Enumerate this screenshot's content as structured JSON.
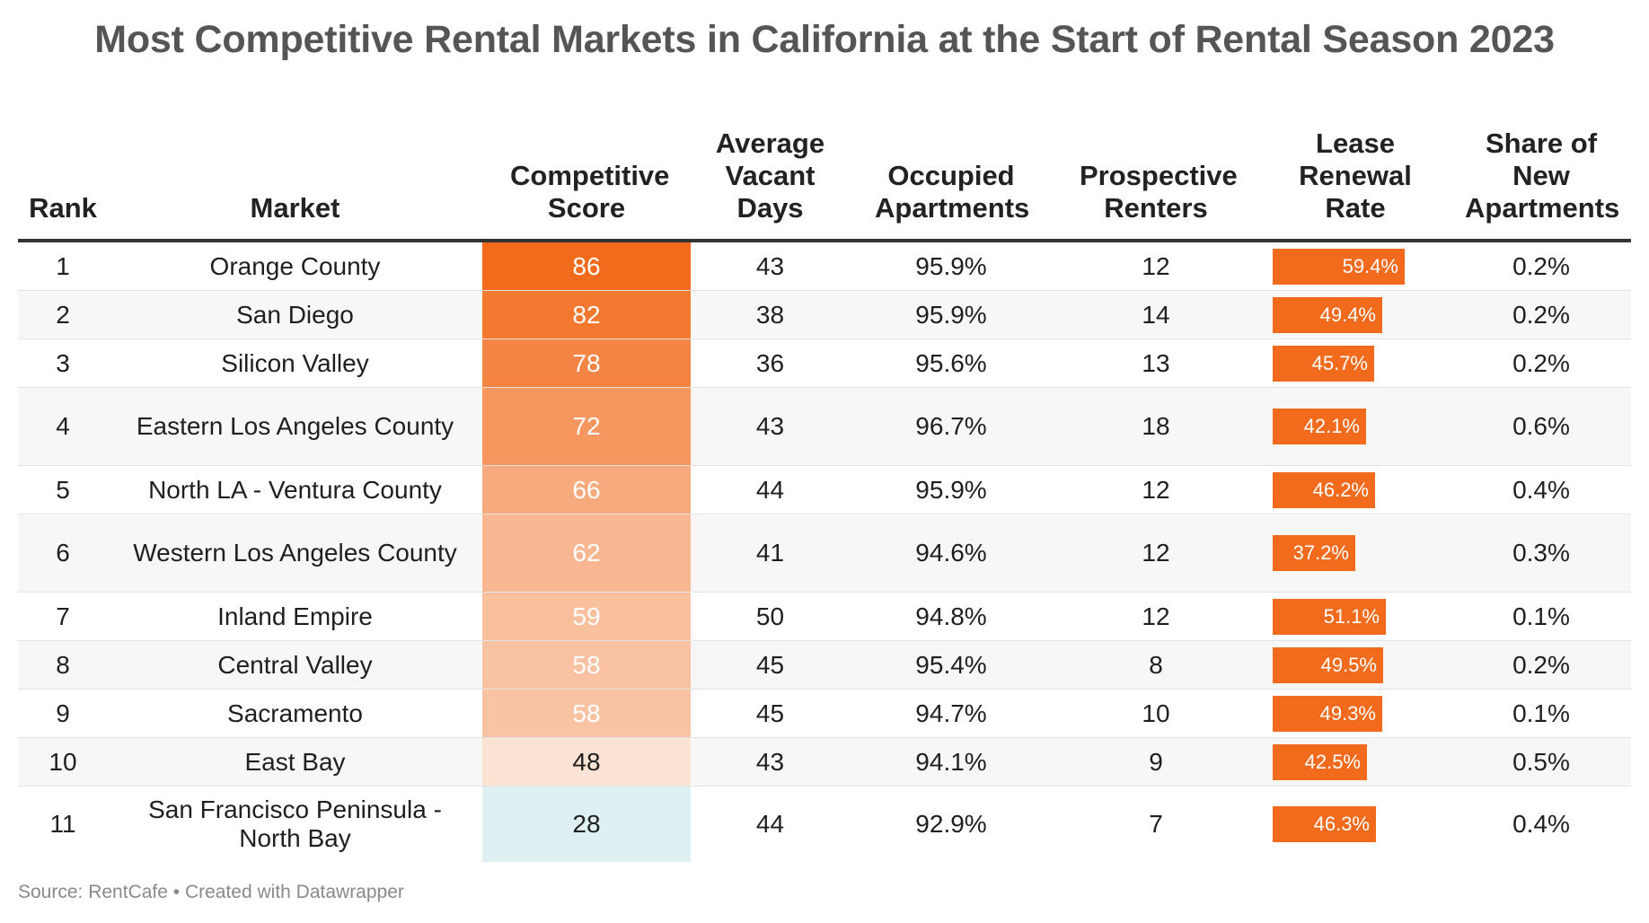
{
  "title": "Most Competitive Rental Markets in California at the Start of Rental Season 2023",
  "source": "Source: RentCafe • Created with Datawrapper",
  "columns": {
    "rank": "Rank",
    "market": "Market",
    "score": "Competitive Score",
    "days": "Average Vacant Days",
    "occupied": "Occupied Apartments",
    "prospective": "Prospective Renters",
    "lease": "Lease Renewal Rate",
    "share": "Share of New Apartments"
  },
  "colors": {
    "score_high": "#f26b1d",
    "score_low": "#fce3d3",
    "score_lowest": "#dff0f3",
    "lease_bar": "#f26b1d"
  },
  "lease_max_percent": 59.4,
  "chart_data": {
    "type": "table",
    "title": "Most Competitive Rental Markets in California at the Start of Rental Season 2023",
    "rows": [
      {
        "rank": "1",
        "market": "Orange County",
        "score": 86,
        "days": "43",
        "occupied": "95.9%",
        "prospective": "12",
        "lease": 59.4,
        "lease_label": "59.4%",
        "share": "0.2%"
      },
      {
        "rank": "2",
        "market": "San Diego",
        "score": 82,
        "days": "38",
        "occupied": "95.9%",
        "prospective": "14",
        "lease": 49.4,
        "lease_label": "49.4%",
        "share": "0.2%"
      },
      {
        "rank": "3",
        "market": "Silicon Valley",
        "score": 78,
        "days": "36",
        "occupied": "95.6%",
        "prospective": "13",
        "lease": 45.7,
        "lease_label": "45.7%",
        "share": "0.2%"
      },
      {
        "rank": "4",
        "market": "Eastern Los Angeles County",
        "score": 72,
        "days": "43",
        "occupied": "96.7%",
        "prospective": "18",
        "lease": 42.1,
        "lease_label": "42.1%",
        "share": "0.6%"
      },
      {
        "rank": "5",
        "market": "North LA - Ventura County",
        "score": 66,
        "days": "44",
        "occupied": "95.9%",
        "prospective": "12",
        "lease": 46.2,
        "lease_label": "46.2%",
        "share": "0.4%"
      },
      {
        "rank": "6",
        "market": "Western Los Angeles County",
        "score": 62,
        "days": "41",
        "occupied": "94.6%",
        "prospective": "12",
        "lease": 37.2,
        "lease_label": "37.2%",
        "share": "0.3%"
      },
      {
        "rank": "7",
        "market": "Inland Empire",
        "score": 59,
        "days": "50",
        "occupied": "94.8%",
        "prospective": "12",
        "lease": 51.1,
        "lease_label": "51.1%",
        "share": "0.1%"
      },
      {
        "rank": "8",
        "market": "Central Valley",
        "score": 58,
        "days": "45",
        "occupied": "95.4%",
        "prospective": "8",
        "lease": 49.5,
        "lease_label": "49.5%",
        "share": "0.2%"
      },
      {
        "rank": "9",
        "market": "Sacramento",
        "score": 58,
        "days": "45",
        "occupied": "94.7%",
        "prospective": "10",
        "lease": 49.3,
        "lease_label": "49.3%",
        "share": "0.1%"
      },
      {
        "rank": "10",
        "market": "East Bay",
        "score": 48,
        "days": "43",
        "occupied": "94.1%",
        "prospective": "9",
        "lease": 42.5,
        "lease_label": "42.5%",
        "share": "0.5%"
      },
      {
        "rank": "11",
        "market": "San Francisco Peninsula - North Bay",
        "score": 28,
        "days": "44",
        "occupied": "92.9%",
        "prospective": "7",
        "lease": 46.3,
        "lease_label": "46.3%",
        "share": "0.4%"
      }
    ]
  }
}
